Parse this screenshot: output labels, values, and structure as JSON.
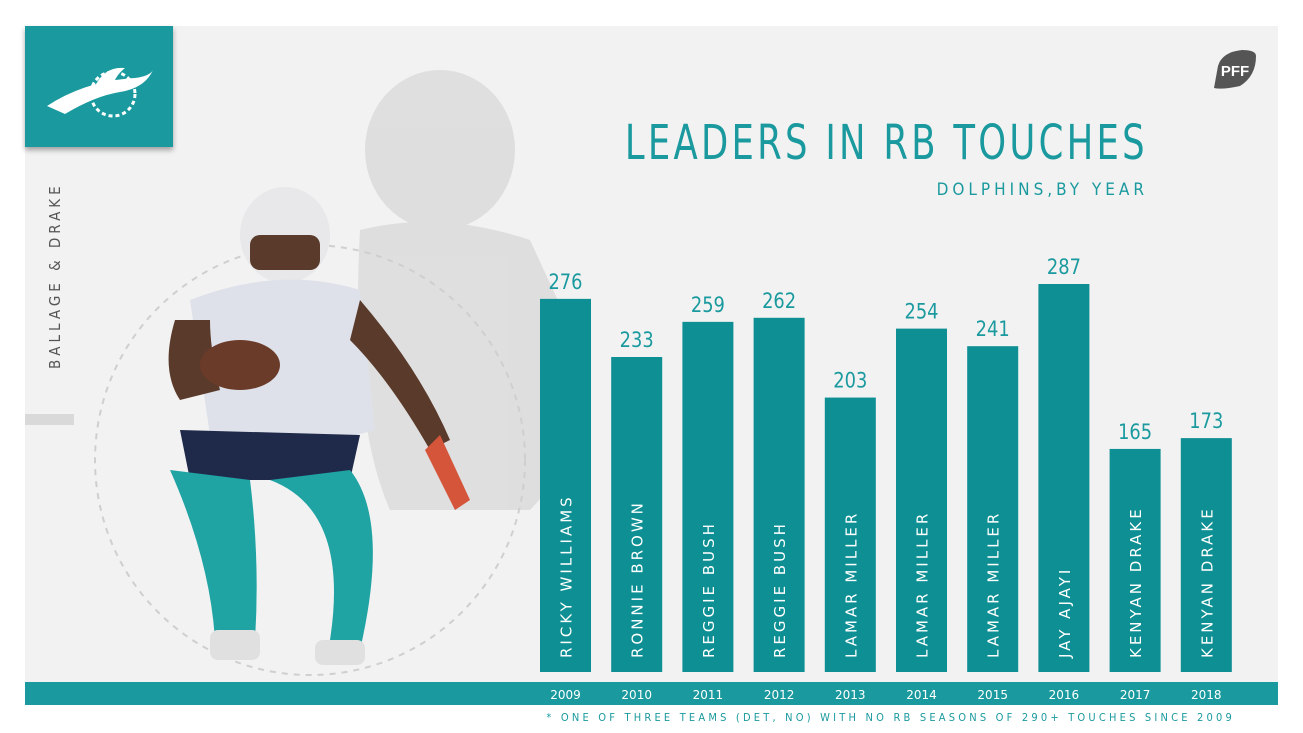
{
  "side_label": "BALLAGE & DRAKE",
  "brand": {
    "team_icon": "dolphin-logo-icon",
    "pff_icon": "pff-logo-icon",
    "accent": "#1a9a9e",
    "pff_color": "#555555"
  },
  "title": "LEADERS IN RB TOUCHES",
  "subtitle": "DOLPHINS,BY YEAR",
  "footnote": "* ONE OF THREE TEAMS (DET, NO) WITH NO RB SEASONS OF 290+ TOUCHES SINCE 2009",
  "chart_data": {
    "type": "bar",
    "categories": [
      "2009",
      "2010",
      "2011",
      "2012",
      "2013",
      "2014",
      "2015",
      "2016",
      "2017",
      "2018"
    ],
    "values": [
      276,
      233,
      259,
      262,
      203,
      254,
      241,
      287,
      165,
      173
    ],
    "bar_labels": [
      "RICKY WILLIAMS",
      "RONNIE BROWN",
      "REGGIE BUSH",
      "REGGIE BUSH",
      "LAMAR MILLER",
      "LAMAR MILLER",
      "LAMAR MILLER",
      "JAY AJAYI",
      "KENYAN DRAKE",
      "KENYAN DRAKE"
    ],
    "title": "LEADERS IN RB TOUCHES",
    "subtitle": "DOLPHINS,BY YEAR",
    "bar_color": "#0d8f93",
    "grid": false
  }
}
